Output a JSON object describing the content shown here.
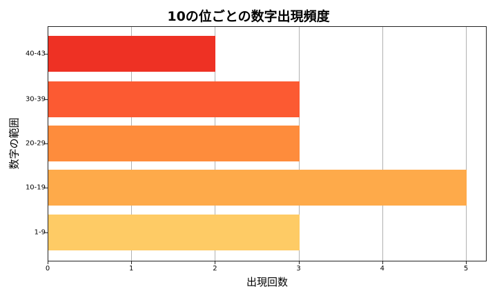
{
  "chart_data": {
    "type": "bar",
    "orientation": "horizontal",
    "title": "10の位ごとの数字出現頻度",
    "xlabel": "出現回数",
    "ylabel": "数字の範囲",
    "categories": [
      "1-9",
      "10-19",
      "20-29",
      "30-39",
      "40-43"
    ],
    "values": [
      3,
      5,
      3,
      3,
      2
    ],
    "colors": [
      "#FECB65",
      "#FEAA4A",
      "#FE8C3C",
      "#FC5A32",
      "#EE3124"
    ],
    "xlim": [
      0,
      5.25
    ],
    "xticks": [
      "0",
      "1",
      "2",
      "3",
      "4",
      "5"
    ],
    "grid": "x",
    "legend": null
  }
}
